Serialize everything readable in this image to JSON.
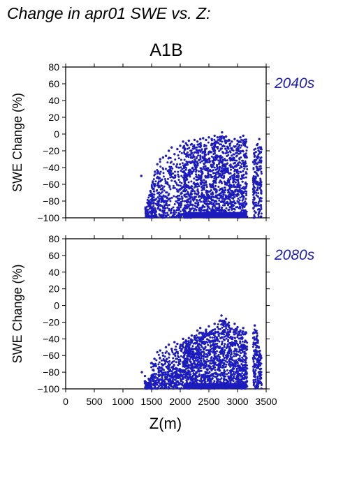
{
  "figure": {
    "title": "Change in apr01 SWE vs. Z:",
    "subtitle": "A1B",
    "xlabel": "Z(m)",
    "point_color": "#1c1cbe",
    "label_color": "#2020b0"
  },
  "chart_data": [
    {
      "type": "scatter",
      "panel_label": "2040s",
      "ylabel": "SWE Change (%)",
      "xlim": [
        0,
        3500
      ],
      "ylim": [
        -100,
        80
      ],
      "x_ticks": [
        0,
        500,
        1000,
        1500,
        2000,
        2500,
        3000,
        3500
      ],
      "y_ticks": [
        80,
        60,
        40,
        20,
        0,
        -20,
        -40,
        -60,
        -80,
        -100
      ],
      "x_tick_labels": false,
      "grid": false,
      "series": [
        {
          "points": [
            [
              1320,
              -50
            ],
            [
              1450,
              -80
            ],
            [
              1480,
              -68
            ],
            [
              1520,
              -58
            ],
            [
              1560,
              -45
            ],
            [
              1600,
              -36
            ],
            [
              1650,
              -30
            ],
            [
              1700,
              -28
            ],
            [
              1750,
              -26
            ],
            [
              1800,
              -20
            ],
            [
              1850,
              -16
            ],
            [
              1900,
              -24
            ],
            [
              1950,
              -18
            ],
            [
              2000,
              -14
            ],
            [
              2050,
              -9
            ],
            [
              2100,
              -11
            ],
            [
              2150,
              -8
            ],
            [
              2200,
              -12
            ],
            [
              2250,
              -7
            ],
            [
              2300,
              -9
            ],
            [
              2350,
              -6
            ],
            [
              2400,
              -5
            ],
            [
              2450,
              -7
            ],
            [
              2500,
              -4
            ],
            [
              2550,
              -6
            ],
            [
              2600,
              -2
            ],
            [
              2650,
              -4
            ],
            [
              2700,
              -8
            ],
            [
              2730,
              2
            ],
            [
              2760,
              -5
            ],
            [
              2800,
              -3
            ],
            [
              2850,
              -7
            ],
            [
              2900,
              -9
            ],
            [
              2950,
              -6
            ],
            [
              3000,
              -8
            ],
            [
              3050,
              -4
            ],
            [
              3100,
              -2
            ],
            [
              3150,
              -9
            ],
            [
              3300,
              -26
            ],
            [
              3340,
              -13
            ],
            [
              3380,
              -6
            ],
            [
              1500,
              -96
            ],
            [
              1700,
              -99
            ],
            [
              2000,
              -99
            ],
            [
              2500,
              -99
            ],
            [
              3000,
              -99
            ],
            [
              3300,
              -99
            ]
          ]
        }
      ]
    },
    {
      "type": "scatter",
      "panel_label": "2080s",
      "ylabel": "SWE Change (%)",
      "xlim": [
        0,
        3500
      ],
      "ylim": [
        -100,
        80
      ],
      "x_ticks": [
        0,
        500,
        1000,
        1500,
        2000,
        2500,
        3000,
        3500
      ],
      "y_ticks": [
        80,
        60,
        40,
        20,
        0,
        -20,
        -40,
        -60,
        -80,
        -100
      ],
      "x_tick_labels": true,
      "grid": false,
      "series": [
        {
          "points": [
            [
              1330,
              -80
            ],
            [
              1400,
              -92
            ],
            [
              1450,
              -88
            ],
            [
              1500,
              -84
            ],
            [
              1550,
              -64
            ],
            [
              1600,
              -56
            ],
            [
              1650,
              -54
            ],
            [
              1700,
              -60
            ],
            [
              1750,
              -50
            ],
            [
              1800,
              -47
            ],
            [
              1850,
              -52
            ],
            [
              1900,
              -44
            ],
            [
              1950,
              -46
            ],
            [
              2000,
              -49
            ],
            [
              2050,
              -40
            ],
            [
              2100,
              -42
            ],
            [
              2150,
              -39
            ],
            [
              2200,
              -36
            ],
            [
              2250,
              -38
            ],
            [
              2300,
              -30
            ],
            [
              2350,
              -27
            ],
            [
              2400,
              -33
            ],
            [
              2450,
              -29
            ],
            [
              2500,
              -25
            ],
            [
              2550,
              -31
            ],
            [
              2600,
              -22
            ],
            [
              2650,
              -26
            ],
            [
              2700,
              -18
            ],
            [
              2720,
              -12
            ],
            [
              2760,
              -20
            ],
            [
              2800,
              -16
            ],
            [
              2850,
              -24
            ],
            [
              2900,
              -28
            ],
            [
              2950,
              -22
            ],
            [
              3000,
              -26
            ],
            [
              3050,
              -30
            ],
            [
              3100,
              -27
            ],
            [
              3150,
              -33
            ],
            [
              3300,
              -24
            ],
            [
              3320,
              -45
            ],
            [
              3360,
              -50
            ],
            [
              3390,
              -58
            ],
            [
              1500,
              -99
            ],
            [
              1800,
              -99
            ],
            [
              2200,
              -99
            ],
            [
              2700,
              -99
            ],
            [
              3100,
              -99
            ],
            [
              3350,
              -99
            ]
          ]
        }
      ]
    }
  ]
}
